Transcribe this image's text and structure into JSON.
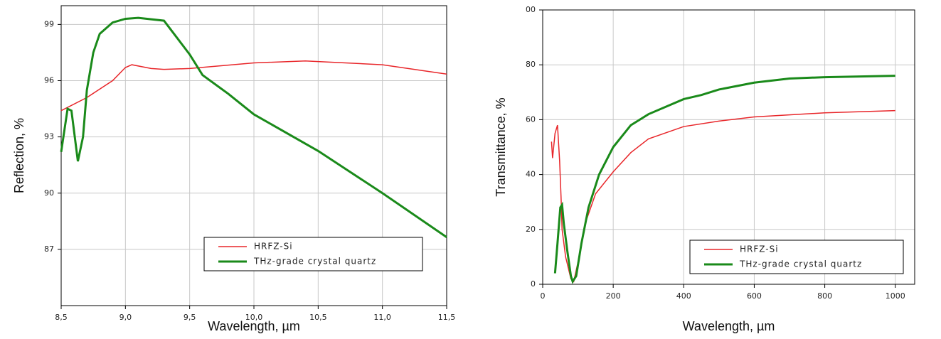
{
  "chart_data": [
    {
      "type": "line",
      "xlabel": "Wavelength, µm",
      "ylabel": "Reflection, %",
      "xlim": [
        8.5,
        11.5
      ],
      "ylim": [
        84,
        100
      ],
      "xticks": [
        {
          "value": 8.5,
          "label": "8,5"
        },
        {
          "value": 9.0,
          "label": "9,0"
        },
        {
          "value": 9.5,
          "label": "9,5"
        },
        {
          "value": 10.0,
          "label": "10,0"
        },
        {
          "value": 10.5,
          "label": "10,5"
        },
        {
          "value": 11.0,
          "label": "11,0"
        },
        {
          "value": 11.5,
          "label": "11,5"
        }
      ],
      "yticks": [
        87,
        90,
        93,
        96,
        99
      ],
      "grid": true,
      "series": [
        {
          "name": "HRFZ-Si",
          "color": "#e8262a",
          "x": [
            8.5,
            8.7,
            8.9,
            9.0,
            9.05,
            9.2,
            9.3,
            9.5,
            10.0,
            10.4,
            11.0,
            11.5
          ],
          "values": [
            94.4,
            95.1,
            96.0,
            96.7,
            96.85,
            96.65,
            96.6,
            96.65,
            96.95,
            97.05,
            96.85,
            96.35
          ]
        },
        {
          "name": "THz-grade crystal quartz",
          "color": "#1a8a1a",
          "x": [
            8.5,
            8.55,
            8.58,
            8.63,
            8.67,
            8.7,
            8.75,
            8.8,
            8.9,
            9.0,
            9.1,
            9.3,
            9.4,
            9.5,
            9.6,
            9.8,
            10.0,
            10.5,
            11.0,
            11.5
          ],
          "values": [
            92.2,
            94.5,
            94.4,
            91.7,
            93.0,
            95.5,
            97.5,
            98.5,
            99.1,
            99.3,
            99.35,
            99.2,
            98.3,
            97.4,
            96.3,
            95.3,
            94.2,
            92.25,
            90.0,
            87.65
          ]
        }
      ]
    },
    {
      "type": "line",
      "xlabel": "Wavelength, µm",
      "ylabel": "Transmittance, %",
      "xlim": [
        0,
        1055
      ],
      "ylim": [
        0,
        100
      ],
      "xticks": [
        0,
        200,
        400,
        600,
        800,
        1000
      ],
      "yticks": [
        0,
        20,
        40,
        60,
        80,
        {
          "value": 100,
          "label": "00"
        }
      ],
      "grid": true,
      "series": [
        {
          "name": "HRFZ-Si",
          "color": "#e8262a",
          "x": [
            25,
            28,
            35,
            42,
            48,
            52,
            55,
            65,
            80,
            88,
            100,
            120,
            150,
            200,
            250,
            300,
            400,
            500,
            600,
            800,
            1000
          ],
          "values": [
            52,
            46,
            55,
            58,
            45,
            32,
            20,
            10,
            2,
            1,
            8,
            22,
            33,
            41,
            48,
            53,
            57.5,
            59.5,
            61,
            62.5,
            63.3
          ]
        },
        {
          "name": "THz-grade crystal quartz",
          "color": "#1a8a1a",
          "x": [
            35,
            42,
            50,
            55,
            60,
            70,
            80,
            85,
            95,
            110,
            130,
            160,
            200,
            250,
            300,
            400,
            450,
            500,
            600,
            700,
            800,
            1000
          ],
          "values": [
            4,
            15,
            28,
            29,
            22,
            12,
            3,
            1,
            3,
            15,
            28,
            40,
            50,
            58,
            62,
            67.5,
            69,
            71,
            73.5,
            75,
            75.5,
            76
          ]
        }
      ]
    }
  ]
}
